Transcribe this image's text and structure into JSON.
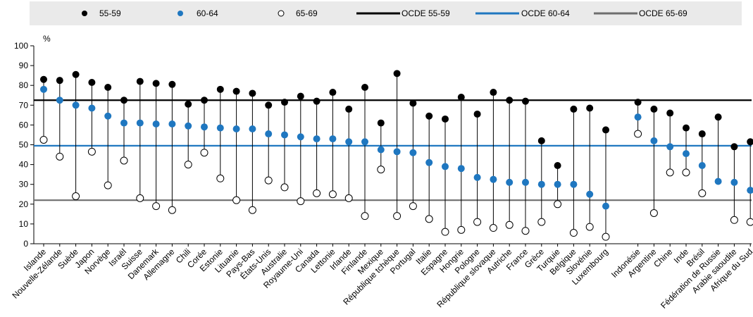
{
  "chart_data": {
    "type": "dot",
    "unit_label": "%",
    "ylim": [
      0,
      100
    ],
    "yticks": [
      0,
      10,
      20,
      30,
      40,
      50,
      60,
      70,
      80,
      90,
      100
    ],
    "grid": false,
    "legend_position": "top",
    "categories": [
      "Islande",
      "Nouvelle-Zélande",
      "Suède",
      "Japon",
      "Norvège",
      "Israël",
      "Suisse",
      "Danemark",
      "Allemagne",
      "Chili",
      "Corée",
      "Estonie",
      "Lituanie",
      "Pays-Bas",
      "États-Unis",
      "Australie",
      "Royaume-Uni",
      "Canada",
      "Lettonie",
      "Irlande",
      "Finlande",
      "Mexique",
      "République tchèque",
      "Portugal",
      "Italie",
      "Espagne",
      "Hongrie",
      "Pologne",
      "République slovaque",
      "Autriche",
      "France",
      "Grèce",
      "Turquie",
      "Belgique",
      "Slovénie",
      "Luxembourg",
      "",
      "Indonésie",
      "Argentine",
      "Chine",
      "Inde",
      "Brésil",
      "Fédération de Russie",
      "Arabie saoudite",
      "Afrique du Sud"
    ],
    "series": [
      {
        "name": "55-59",
        "marker": "filled",
        "color": "#000000",
        "values": [
          83,
          82.5,
          85.5,
          81.5,
          79,
          72.5,
          82,
          81,
          80.5,
          70.5,
          72.5,
          78,
          77,
          76,
          70,
          71.5,
          74.5,
          72,
          76.5,
          68,
          79,
          61,
          86,
          71,
          64.5,
          63,
          74,
          65.5,
          76.5,
          72.5,
          72,
          52,
          39.5,
          68,
          68.5,
          57.5,
          null,
          71.5,
          68,
          66,
          58.5,
          55.5,
          64,
          49,
          51.5
        ]
      },
      {
        "name": "60-64",
        "marker": "filled",
        "color": "#1f77c0",
        "values": [
          78,
          72.5,
          70,
          68.5,
          64.5,
          61,
          61,
          60.5,
          60.5,
          59.5,
          59,
          58.5,
          58,
          58,
          55.5,
          55,
          54,
          53,
          53,
          51.5,
          51.5,
          47.5,
          46.5,
          46,
          41,
          39,
          38,
          33.5,
          32.5,
          31,
          31,
          30,
          30,
          30,
          25,
          19,
          null,
          64,
          52,
          49,
          45.5,
          39.5,
          31.5,
          31,
          27
        ]
      },
      {
        "name": "65-69",
        "marker": "hollow",
        "color": "#000000",
        "values": [
          52.5,
          44,
          24,
          46.5,
          29.5,
          42,
          23,
          19,
          17,
          40,
          46,
          33,
          22,
          17,
          32,
          28.5,
          21.5,
          25.5,
          25,
          23,
          14,
          37.5,
          14,
          19,
          12.5,
          6,
          7,
          11,
          8,
          9.5,
          6.5,
          11,
          20,
          5.5,
          8.5,
          3.5,
          null,
          55.5,
          15.5,
          36,
          36,
          25.5,
          null,
          12,
          11
        ]
      }
    ],
    "reference_lines": [
      {
        "name": "OCDE 55-59",
        "value": 72.5,
        "color": "#000000"
      },
      {
        "name": "OCDE 60-64",
        "value": 49.5,
        "color": "#1f77c0"
      },
      {
        "name": "OCDE 65-69",
        "value": 22,
        "color": "#6e6e6e"
      }
    ]
  },
  "legend": {
    "items": [
      {
        "label": "55-59",
        "kind": "dot-filled",
        "color": "#000000"
      },
      {
        "label": "60-64",
        "kind": "dot-filled",
        "color": "#1f77c0"
      },
      {
        "label": "65-69",
        "kind": "dot-hollow",
        "color": "#000000"
      },
      {
        "label": "OCDE 55-59",
        "kind": "line",
        "color": "#000000"
      },
      {
        "label": "OCDE 60-64",
        "kind": "line",
        "color": "#1f77c0"
      },
      {
        "label": "OCDE 65-69",
        "kind": "line",
        "color": "#6e6e6e"
      }
    ]
  }
}
